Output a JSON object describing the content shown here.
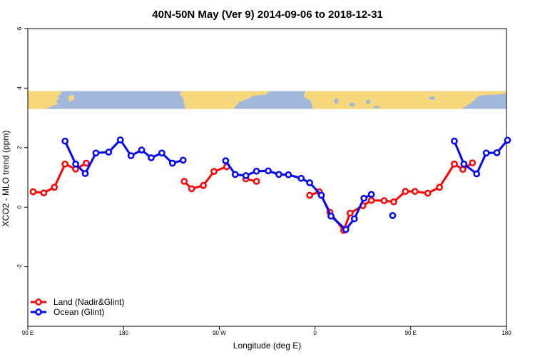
{
  "chart_data": {
    "type": "line",
    "title": "40N-50N May (Ver 9)   2014-09-06 to 2018-12-31",
    "xlabel": "Longitude (deg E)",
    "ylabel": "XCO2 - MLO trend (ppm)",
    "xlim": [
      90,
      540
    ],
    "ylim": [
      -4,
      6
    ],
    "x_ticks": [
      {
        "value": 90,
        "label": "90 E"
      },
      {
        "value": 180,
        "label": "180"
      },
      {
        "value": 270,
        "label": "90 W"
      },
      {
        "value": 360,
        "label": "0"
      },
      {
        "value": 450,
        "label": "90 E"
      },
      {
        "value": 540,
        "label": "180"
      }
    ],
    "y_ticks": [
      {
        "value": -2,
        "label": "-2"
      },
      {
        "value": 0,
        "label": "0"
      },
      {
        "value": 2,
        "label": "2"
      },
      {
        "value": 4,
        "label": "4"
      },
      {
        "value": 6,
        "label": "6"
      }
    ],
    "grid": false,
    "legend_position": "bottom-left",
    "map_strip": {
      "y_range": [
        3.3,
        3.9
      ],
      "ocean_color": "#a2b8da",
      "land_color": "#f7d77c"
    },
    "series": [
      {
        "name": "Land (Nadir&Glint)",
        "color": "#ff0000",
        "segments": [
          [
            [
              95,
              0.52
            ],
            [
              105,
              0.48
            ],
            [
              115,
              0.67
            ],
            [
              125,
              1.45
            ],
            [
              135,
              1.28
            ],
            [
              145,
              1.48
            ]
          ],
          [
            [
              237,
              0.87
            ],
            [
              244,
              0.62
            ],
            [
              255,
              0.73
            ],
            [
              265,
              1.2
            ],
            [
              277,
              1.36
            ]
          ],
          [
            [
              295,
              0.95
            ],
            [
              305,
              0.87
            ]
          ],
          [
            [
              355,
              0.4
            ],
            [
              364,
              0.52
            ],
            [
              374,
              -0.17
            ],
            [
              387,
              -0.78
            ],
            [
              393,
              -0.2
            ],
            [
              405,
              0.05
            ],
            [
              413,
              0.23
            ],
            [
              425,
              0.22
            ],
            [
              434,
              0.18
            ],
            [
              445,
              0.53
            ],
            [
              454,
              0.53
            ],
            [
              466,
              0.47
            ],
            [
              477,
              0.67
            ],
            [
              491,
              1.45
            ],
            [
              499,
              1.27
            ],
            [
              508,
              1.49
            ]
          ]
        ]
      },
      {
        "name": "Ocean (Glint)",
        "color": "#0000ff",
        "segments": [
          [
            [
              125,
              2.22
            ],
            [
              135,
              1.45
            ],
            [
              144,
              1.13
            ],
            [
              154,
              1.82
            ],
            [
              166,
              1.85
            ],
            [
              177,
              2.26
            ],
            [
              187,
              1.73
            ],
            [
              197,
              1.92
            ],
            [
              206,
              1.66
            ],
            [
              216,
              1.82
            ],
            [
              226,
              1.48
            ],
            [
              236,
              1.58
            ]
          ],
          [
            [
              276,
              1.56
            ],
            [
              285,
              1.1
            ],
            [
              295,
              1.06
            ],
            [
              305,
              1.21
            ],
            [
              316,
              1.22
            ],
            [
              326,
              1.1
            ],
            [
              335,
              1.09
            ],
            [
              347,
              0.97
            ],
            [
              355,
              0.82
            ],
            [
              366,
              0.4
            ],
            [
              375,
              -0.3
            ],
            [
              389,
              -0.75
            ],
            [
              397,
              -0.39
            ],
            [
              406,
              0.3
            ],
            [
              413,
              0.43
            ]
          ],
          [
            [
              433,
              -0.28
            ]
          ],
          [
            [
              491,
              2.22
            ],
            [
              500,
              1.45
            ],
            [
              512,
              1.12
            ],
            [
              521,
              1.82
            ],
            [
              531,
              1.83
            ],
            [
              541,
              2.25
            ]
          ]
        ]
      }
    ]
  }
}
